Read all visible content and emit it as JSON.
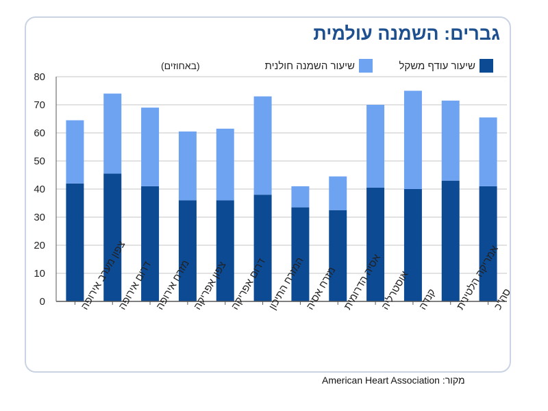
{
  "chart_data": {
    "type": "bar",
    "stacked": true,
    "title": "גברים: השמנה עולמית",
    "unit_note": "(באחוזים)",
    "source": "מקור: American Heart Association",
    "ylim": [
      0,
      80
    ],
    "yticks": [
      0,
      10,
      20,
      30,
      40,
      50,
      60,
      70,
      80
    ],
    "grid": true,
    "legend_position": "top",
    "categories": [
      "צפון מערב אירופה",
      "דרום אירופה",
      "מזרח אירופה",
      "צפון אפריקה",
      "דרום אפריקה",
      "המזרח התיכון",
      "מזרח אסיה",
      "אסיה הדרומית",
      "אוסטרליה",
      "קנדה",
      "אמריקה הלטינית",
      "סה\"כ"
    ],
    "series": [
      {
        "name": "שיעור עודף משקל",
        "color": "#0c4a94",
        "values": [
          42,
          45.5,
          41,
          36,
          36,
          38,
          33.5,
          32.5,
          40.5,
          40,
          43,
          41
        ]
      },
      {
        "name": "שיעור השמנה חולנית",
        "color": "#6ea3f2",
        "values": [
          22.5,
          28.5,
          28,
          24.5,
          25.5,
          35,
          7.5,
          12,
          29.5,
          35,
          28.5,
          24.5
        ]
      }
    ]
  }
}
